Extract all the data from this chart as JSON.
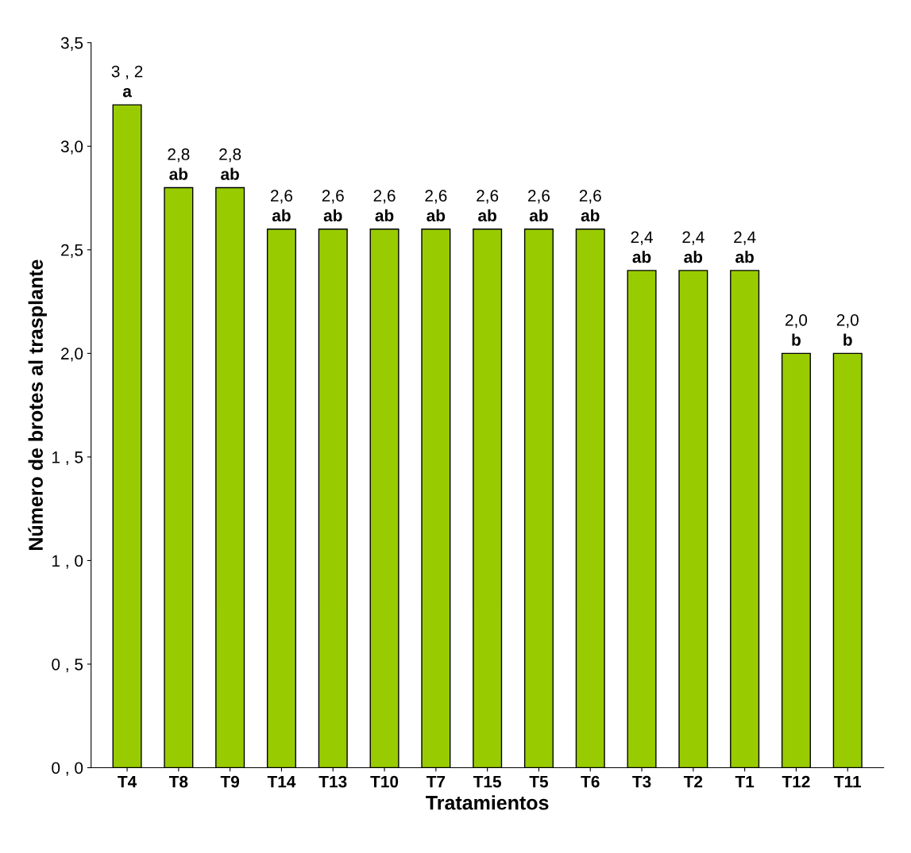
{
  "chart_data": {
    "type": "bar",
    "xlabel": "Tratamientos",
    "ylabel": "Número de brotes al trasplante",
    "categories": [
      "T4",
      "T8",
      "T9",
      "T14",
      "T13",
      "T10",
      "T7",
      "T15",
      "T5",
      "T6",
      "T3",
      "T2",
      "T1",
      "T12",
      "T11"
    ],
    "values": [
      3.2,
      2.8,
      2.8,
      2.6,
      2.6,
      2.6,
      2.6,
      2.6,
      2.6,
      2.6,
      2.4,
      2.4,
      2.4,
      2.0,
      2.0
    ],
    "value_labels": [
      "3 , 2",
      "2,8",
      "2,8",
      "2,6",
      "2,6",
      "2,6",
      "2,6",
      "2,6",
      "2,6",
      "2,6",
      "2,4",
      "2,4",
      "2,4",
      "2,0",
      "2,0"
    ],
    "color": "#99cc00",
    "ylim": [
      0,
      3.5
    ],
    "yticks": [
      {
        "value": 0,
        "label": "0 , 0"
      },
      {
        "value": 0.5,
        "label": "0 , 5"
      },
      {
        "value": 1.0,
        "label": "1 , 0"
      },
      {
        "value": 1.5,
        "label": "1 , 5"
      },
      {
        "value": 2.0,
        "label": "2,0"
      },
      {
        "value": 2.5,
        "label": "2,5"
      },
      {
        "value": 3.0,
        "label": "3,0"
      },
      {
        "value": 3.5,
        "label": "3,5"
      }
    ],
    "annotations": [
      {
        "text": "a",
        "x": "T4",
        "y": 3.2
      },
      {
        "text": "ab",
        "x": "T8",
        "y": 2.8
      },
      {
        "text": "ab",
        "x": "T9",
        "y": 2.8
      },
      {
        "text": "ab",
        "x": "T14",
        "y": 2.6
      },
      {
        "text": "ab",
        "x": "T13",
        "y": 2.6
      },
      {
        "text": "ab",
        "x": "T10",
        "y": 2.6
      },
      {
        "text": "ab",
        "x": "T7",
        "y": 2.6
      },
      {
        "text": "ab",
        "x": "T15",
        "y": 2.6
      },
      {
        "text": "ab",
        "x": "T5",
        "y": 2.6
      },
      {
        "text": "ab",
        "x": "T6",
        "y": 2.6
      },
      {
        "text": "ab",
        "x": "T3",
        "y": 2.4
      },
      {
        "text": "ab",
        "x": "T2",
        "y": 2.4
      },
      {
        "text": "ab",
        "x": "T1",
        "y": 2.4
      },
      {
        "text": "b",
        "x": "T12",
        "y": 2.0
      },
      {
        "text": "b",
        "x": "T11",
        "y": 2.0
      }
    ],
    "grid": false
  }
}
